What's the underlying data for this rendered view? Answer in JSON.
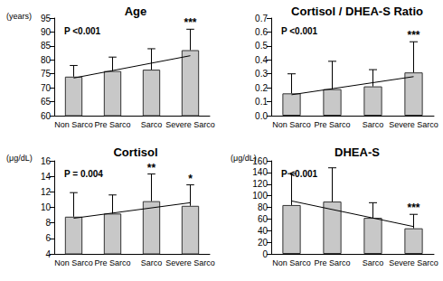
{
  "chart_data": [
    {
      "type": "bar",
      "title": "Age",
      "y_label": "(years)",
      "annotation": "P <0.001",
      "categories": [
        "Non Sarco",
        "Pre Sarco",
        "Sarco",
        "Severe Sarco"
      ],
      "values": [
        74,
        76,
        76.5,
        83.5
      ],
      "errors": [
        4,
        5,
        7.5,
        7.5
      ],
      "significance": [
        null,
        null,
        null,
        "***"
      ],
      "trend": [
        73.5,
        81.5
      ],
      "color": "#c8c8c8",
      "ylim": [
        60,
        95
      ],
      "yticks": [
        60,
        65,
        70,
        75,
        80,
        85,
        90,
        95
      ],
      "grid": false
    },
    {
      "type": "bar",
      "title": "Cortisol / DHEA-S Ratio",
      "annotation": "P <0.001",
      "categories": [
        "Non Sarco",
        "Pre Sarco",
        "Sarco",
        "Severe Sarco"
      ],
      "values": [
        0.16,
        0.19,
        0.21,
        0.31
      ],
      "errors": [
        0.14,
        0.2,
        0.12,
        0.22
      ],
      "significance": [
        null,
        null,
        null,
        "***"
      ],
      "trend": [
        0.15,
        0.28
      ],
      "color": "#c8c8c8",
      "ylim": [
        0,
        0.7
      ],
      "yticks": [
        {
          "value": 0,
          "label": "0.0"
        },
        0.1,
        0.2,
        0.3,
        0.4,
        0.5,
        0.6,
        0.7
      ],
      "grid": false
    },
    {
      "type": "bar",
      "title": "Cortisol",
      "y_label": "(μg/dL)",
      "annotation": "P = 0.004",
      "categories": [
        "Non Sarco",
        "Pre Sarco",
        "Sarco",
        "Severe Sarco"
      ],
      "values": [
        8.8,
        9.2,
        10.8,
        10.2
      ],
      "errors": [
        3.1,
        2.4,
        3.5,
        2.7
      ],
      "significance": [
        null,
        null,
        "**",
        "*"
      ],
      "trend": [
        8.6,
        10.6
      ],
      "color": "#c8c8c8",
      "ylim": [
        4,
        16
      ],
      "yticks": [
        4,
        6,
        8,
        10,
        12,
        14,
        16
      ],
      "grid": false
    },
    {
      "type": "bar",
      "title": "DHEA-S",
      "y_label": "(μg/dL)",
      "annotation": "P <0.001",
      "categories": [
        "Non Sarco",
        "Pre Sarco",
        "Sarco",
        "Severe Sarco"
      ],
      "values": [
        84,
        90,
        62,
        44
      ],
      "errors": [
        54,
        58,
        26,
        24
      ],
      "significance": [
        null,
        null,
        null,
        "***"
      ],
      "trend": [
        91,
        47
      ],
      "color": "#c8c8c8",
      "ylim": [
        0,
        160
      ],
      "yticks": [
        0,
        20,
        40,
        60,
        80,
        100,
        120,
        140,
        160
      ],
      "grid": false
    }
  ]
}
